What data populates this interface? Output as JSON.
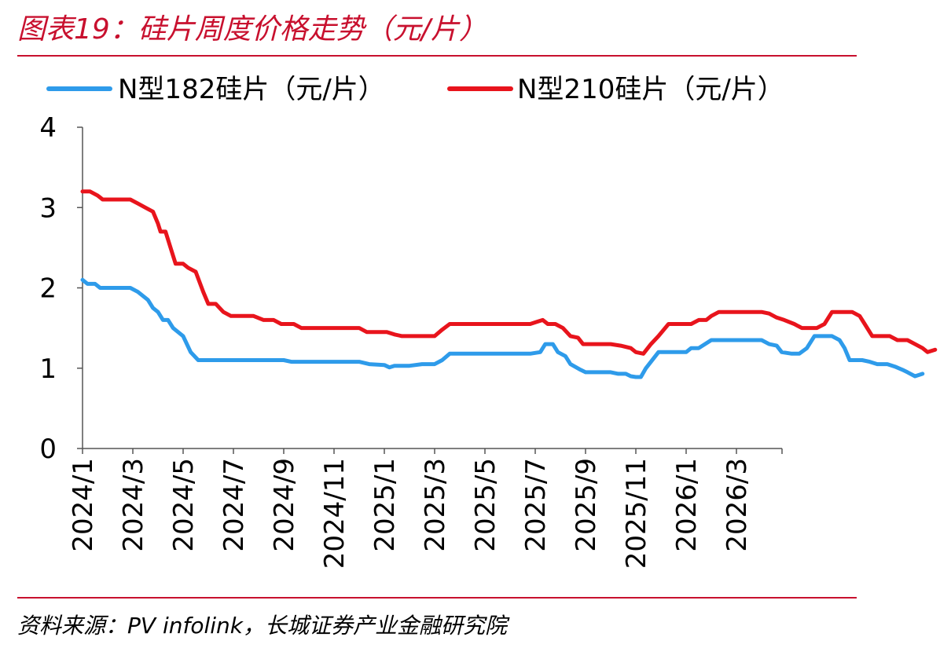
{
  "title": "图表19：硅片周度价格走势（元/片）",
  "source": "资料来源：PV infolink，长城证券产业金融研究院",
  "colors": {
    "accent": "#C8102E",
    "series_182": "#2E9BEA",
    "series_210": "#E8141C"
  },
  "chart_data": {
    "type": "line",
    "title": "",
    "xlabel": "",
    "ylabel": "",
    "ylim": [
      0,
      4
    ],
    "yticks": [
      0,
      1,
      2,
      3,
      4
    ],
    "xticks": [
      "2024/1",
      "2024/3",
      "2024/5",
      "2024/7",
      "2024/9",
      "2024/11",
      "2025/1",
      "2025/3",
      "2025/5",
      "2025/7",
      "2025/9",
      "2025/11",
      "2026/1",
      "2026/3"
    ],
    "x_months": [
      0,
      28
    ],
    "grid": false,
    "legend_position": "top",
    "series": [
      {
        "name": "N型182硅片（元/片）",
        "color": "#2E9BEA",
        "points": [
          [
            0,
            2.1
          ],
          [
            0.2,
            2.05
          ],
          [
            0.5,
            2.05
          ],
          [
            0.7,
            2.0
          ],
          [
            1.9,
            2.0
          ],
          [
            2.2,
            1.95
          ],
          [
            2.6,
            1.85
          ],
          [
            2.8,
            1.75
          ],
          [
            3.0,
            1.7
          ],
          [
            3.2,
            1.6
          ],
          [
            3.4,
            1.6
          ],
          [
            3.6,
            1.5
          ],
          [
            4.0,
            1.4
          ],
          [
            4.3,
            1.2
          ],
          [
            4.6,
            1.1
          ],
          [
            8.0,
            1.1
          ],
          [
            8.3,
            1.08
          ],
          [
            11.0,
            1.08
          ],
          [
            11.4,
            1.05
          ],
          [
            12.0,
            1.04
          ],
          [
            12.2,
            1.01
          ],
          [
            12.4,
            1.03
          ],
          [
            13.0,
            1.03
          ],
          [
            13.5,
            1.05
          ],
          [
            14.0,
            1.05
          ],
          [
            14.3,
            1.1
          ],
          [
            14.6,
            1.18
          ],
          [
            17.8,
            1.18
          ],
          [
            18.2,
            1.2
          ],
          [
            18.4,
            1.3
          ],
          [
            18.7,
            1.3
          ],
          [
            18.9,
            1.2
          ],
          [
            19.2,
            1.15
          ],
          [
            19.4,
            1.05
          ],
          [
            19.8,
            0.98
          ],
          [
            20.0,
            0.95
          ],
          [
            21.0,
            0.95
          ],
          [
            21.3,
            0.93
          ],
          [
            21.6,
            0.93
          ],
          [
            21.8,
            0.9
          ],
          [
            22.0,
            0.89
          ],
          [
            22.2,
            0.89
          ],
          [
            22.4,
            1.0
          ],
          [
            22.9,
            1.2
          ],
          [
            23.5,
            1.2
          ],
          [
            24.0,
            1.2
          ],
          [
            24.2,
            1.25
          ],
          [
            24.5,
            1.25
          ],
          [
            25.0,
            1.35
          ],
          [
            26.5,
            1.35
          ],
          [
            27.0,
            1.35
          ],
          [
            27.3,
            1.3
          ],
          [
            27.6,
            1.28
          ],
          [
            27.8,
            1.2
          ],
          [
            28.2,
            1.18
          ],
          [
            28.5,
            1.18
          ],
          [
            28.8,
            1.25
          ],
          [
            29.1,
            1.4
          ],
          [
            29.8,
            1.4
          ],
          [
            30.1,
            1.35
          ],
          [
            30.3,
            1.25
          ],
          [
            30.5,
            1.1
          ],
          [
            31.0,
            1.1
          ],
          [
            31.3,
            1.08
          ],
          [
            31.6,
            1.05
          ],
          [
            32.0,
            1.05
          ],
          [
            32.3,
            1.02
          ],
          [
            32.6,
            0.98
          ],
          [
            32.8,
            0.95
          ],
          [
            33.1,
            0.9
          ],
          [
            33.4,
            0.93
          ]
        ]
      },
      {
        "name": "N型210硅片（元/片）",
        "color": "#E8141C",
        "points": [
          [
            0,
            3.2
          ],
          [
            0.3,
            3.2
          ],
          [
            0.6,
            3.15
          ],
          [
            0.8,
            3.1
          ],
          [
            1.9,
            3.1
          ],
          [
            2.2,
            3.05
          ],
          [
            2.5,
            3.0
          ],
          [
            2.8,
            2.95
          ],
          [
            3.0,
            2.8
          ],
          [
            3.1,
            2.7
          ],
          [
            3.3,
            2.7
          ],
          [
            3.5,
            2.5
          ],
          [
            3.7,
            2.3
          ],
          [
            4.0,
            2.3
          ],
          [
            4.2,
            2.25
          ],
          [
            4.5,
            2.2
          ],
          [
            4.8,
            1.95
          ],
          [
            5.0,
            1.8
          ],
          [
            5.3,
            1.8
          ],
          [
            5.6,
            1.7
          ],
          [
            5.9,
            1.65
          ],
          [
            6.8,
            1.65
          ],
          [
            7.2,
            1.6
          ],
          [
            7.6,
            1.6
          ],
          [
            7.9,
            1.55
          ],
          [
            8.4,
            1.55
          ],
          [
            8.7,
            1.5
          ],
          [
            10.0,
            1.5
          ],
          [
            11.0,
            1.5
          ],
          [
            11.3,
            1.45
          ],
          [
            12.1,
            1.45
          ],
          [
            12.4,
            1.42
          ],
          [
            12.7,
            1.4
          ],
          [
            13.5,
            1.4
          ],
          [
            14.0,
            1.4
          ],
          [
            14.3,
            1.48
          ],
          [
            14.6,
            1.55
          ],
          [
            17.0,
            1.55
          ],
          [
            17.5,
            1.55
          ],
          [
            17.8,
            1.55
          ],
          [
            18.1,
            1.58
          ],
          [
            18.3,
            1.6
          ],
          [
            18.5,
            1.55
          ],
          [
            18.8,
            1.55
          ],
          [
            19.1,
            1.5
          ],
          [
            19.4,
            1.4
          ],
          [
            19.7,
            1.38
          ],
          [
            19.9,
            1.3
          ],
          [
            20.5,
            1.3
          ],
          [
            21.0,
            1.3
          ],
          [
            21.4,
            1.28
          ],
          [
            21.8,
            1.25
          ],
          [
            22.0,
            1.2
          ],
          [
            22.3,
            1.18
          ],
          [
            22.6,
            1.3
          ],
          [
            22.9,
            1.4
          ],
          [
            23.3,
            1.55
          ],
          [
            24.2,
            1.55
          ],
          [
            24.5,
            1.6
          ],
          [
            24.8,
            1.6
          ],
          [
            25.0,
            1.65
          ],
          [
            25.3,
            1.7
          ],
          [
            27.0,
            1.7
          ],
          [
            27.3,
            1.68
          ],
          [
            27.6,
            1.63
          ],
          [
            27.9,
            1.6
          ],
          [
            28.3,
            1.55
          ],
          [
            28.6,
            1.5
          ],
          [
            29.2,
            1.5
          ],
          [
            29.5,
            1.55
          ],
          [
            29.8,
            1.7
          ],
          [
            30.6,
            1.7
          ],
          [
            30.9,
            1.65
          ],
          [
            31.1,
            1.55
          ],
          [
            31.4,
            1.4
          ],
          [
            32.1,
            1.4
          ],
          [
            32.4,
            1.35
          ],
          [
            32.8,
            1.35
          ],
          [
            33.1,
            1.3
          ],
          [
            33.4,
            1.25
          ],
          [
            33.6,
            1.2
          ],
          [
            33.9,
            1.23
          ]
        ]
      }
    ]
  }
}
